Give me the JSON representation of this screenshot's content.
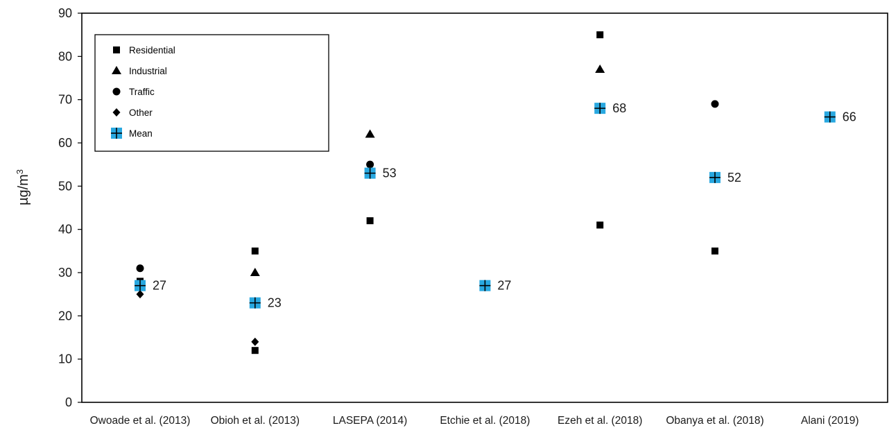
{
  "chart_data": {
    "type": "scatter",
    "ylabel": "µg/m",
    "ylabel_superscript": "3",
    "ylim": [
      0,
      90
    ],
    "yticks": [
      0,
      10,
      20,
      30,
      40,
      50,
      60,
      70,
      80,
      90
    ],
    "grid": false,
    "legend_position": "top-left",
    "categories": [
      "Owoade et al. (2013)",
      "Obioh et al. (2013)",
      "LASEPA (2014)",
      "Etchie et al. (2018)",
      "Ezeh et al. (2018)",
      "Obanya et al. (2018)",
      "Alani (2019)"
    ],
    "series": [
      {
        "name": "Residential",
        "marker": "square",
        "color": "#000000",
        "values": [
          28,
          12,
          42,
          null,
          41,
          35,
          null
        ]
      },
      {
        "name": "Industrial",
        "marker": "triangle",
        "color": "#000000",
        "values": [
          null,
          30,
          62,
          null,
          77,
          null,
          null
        ]
      },
      {
        "name": "Traffic",
        "marker": "circle",
        "color": "#000000",
        "values": [
          31,
          null,
          55,
          null,
          null,
          69,
          null
        ]
      },
      {
        "name": "Other",
        "marker": "diamond",
        "color": "#000000",
        "values": [
          25,
          14,
          null,
          null,
          null,
          null,
          null
        ]
      },
      {
        "name": "Mean",
        "marker": "plus-square",
        "color": "#29a8e0",
        "values": [
          27,
          23,
          53,
          27,
          68,
          52,
          66
        ]
      }
    ],
    "residential_extra": [
      null,
      35,
      null,
      null,
      85,
      null,
      null
    ],
    "mean_labels": [
      "27",
      "23",
      "53",
      "27",
      "68",
      "52",
      "66"
    ]
  }
}
